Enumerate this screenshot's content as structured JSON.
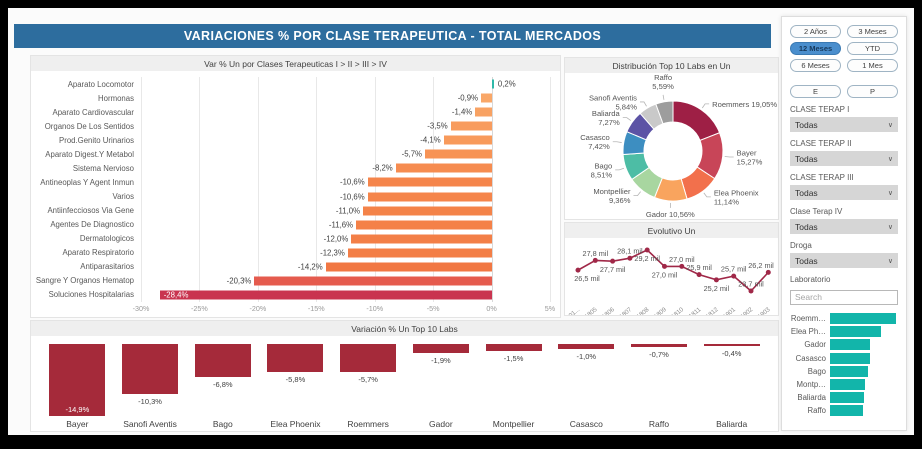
{
  "header": {
    "title": "VARIACIONES % POR CLASE TERAPEUTICA  - TOTAL MERCADOS"
  },
  "colors": {
    "header_bg": "#2d6d9e",
    "positive_teal": "#2fb9a9",
    "bottom_bar_red": "#a52a3a",
    "line_maroon": "#a02848",
    "sidebar_bar_teal": "#12b5aa",
    "selected_button_blue": "#4a8ecd"
  },
  "chart_data": [
    {
      "type": "bar",
      "orientation": "horizontal",
      "title": "Var % Un por Clases Terapeuticas I > II > III > IV",
      "categories": [
        "Aparato Locomotor",
        "Hormonas",
        "Aparato Cardiovascular",
        "Organos De Los Sentidos",
        "Prod.Genito Urinarios",
        "Aparato Digest.Y Metabol",
        "Sistema Nervioso",
        "Antineoplas Y Agent Inmun",
        "Varios",
        "Antiinfecciosos Via Gene",
        "Agentes De Diagnostico",
        "Dermatologicos",
        "Aparato Respiratorio",
        "Antiparasitarios",
        "Sangre Y Organos Hematop",
        "Soluciones Hospitalarias"
      ],
      "values": [
        0.2,
        -0.9,
        -1.4,
        -3.5,
        -4.1,
        -5.7,
        -8.2,
        -10.6,
        -10.6,
        -11.0,
        -11.6,
        -12.0,
        -12.3,
        -14.2,
        -20.3,
        -28.4
      ],
      "value_labels": [
        "0,2%",
        "-0,9%",
        "-1,4%",
        "-3,5%",
        "-4,1%",
        "-5,7%",
        "-8,2%",
        "-10,6%",
        "-10,6%",
        "-11,0%",
        "-11,6%",
        "-12,0%",
        "-12,3%",
        "-14,2%",
        "-20,3%",
        "-28,4%"
      ],
      "bar_colors": [
        "#2fb9a9",
        "#f9a768",
        "#f8a263",
        "#f89c5e",
        "#f89a5b",
        "#f79355",
        "#f68c50",
        "#f5854b",
        "#f5854b",
        "#f48349",
        "#f48148",
        "#f37f47",
        "#f37e46",
        "#f17743",
        "#e55b4e",
        "#c9344f"
      ],
      "xlim": [
        -30,
        5
      ],
      "x_ticks": [
        "-30%",
        "-25%",
        "-20%",
        "-15%",
        "-10%",
        "-5%",
        "0%",
        "5%"
      ]
    },
    {
      "type": "pie",
      "style": "donut",
      "title": "Distribución Top 10 Labs en Un",
      "labels": [
        "Roemmers",
        "Bayer",
        "Elea Phoenix",
        "Gador",
        "Montpellier",
        "Bago",
        "Casasco",
        "Baliarda",
        "Sanofi Aventis",
        "Raffo"
      ],
      "values": [
        19.05,
        15.27,
        11.14,
        10.56,
        9.36,
        8.51,
        7.42,
        7.27,
        5.84,
        5.59
      ],
      "label_lines": [
        [
          "Roemmers 19,05%"
        ],
        [
          "Bayer",
          "15,27%"
        ],
        [
          "Elea Phoenix",
          "11,14%"
        ],
        [
          "Gador 10,56%"
        ],
        [
          "Montpellier",
          "9,36%"
        ],
        [
          "Bago",
          "8,51%"
        ],
        [
          "Casasco",
          "7,42%"
        ],
        [
          "Baliarda",
          "7,27%"
        ],
        [
          "Sanofi Aventis",
          "5,84%"
        ],
        [
          "Raffo",
          "5,59%"
        ]
      ],
      "slice_colors": [
        "#9e1f45",
        "#c84558",
        "#f2704c",
        "#f9a45e",
        "#a8d6a0",
        "#4dbda5",
        "#3d8ec1",
        "#5c53a5",
        "#c9c9c9",
        "#9d9d9d"
      ]
    },
    {
      "type": "line",
      "title": "Evolutivo Un",
      "x": [
        "201...",
        "201805",
        "201806",
        "201807",
        "201808",
        "201809",
        "201810",
        "201811",
        "201812",
        "201901",
        "201902",
        "201903"
      ],
      "values": [
        26.5,
        27.8,
        27.7,
        28.1,
        29.2,
        27.0,
        27.0,
        25.9,
        25.2,
        25.7,
        23.7,
        26.2
      ],
      "value_labels": [
        "26,5 mil",
        "27,8 mil",
        "27,7 mil",
        "28,1 mil",
        "29,2 mil",
        "27,0 mil",
        "27,0 mil",
        "25,9 mil",
        "25,2 mil",
        "25,7 mil",
        "23,7 mil",
        "26,2 mil"
      ],
      "label_pos": [
        "below",
        "above",
        "below",
        "above",
        "below",
        "below",
        "above",
        "above",
        "below",
        "above",
        "above",
        "above"
      ],
      "ylim": [
        23.7,
        29.2
      ]
    },
    {
      "type": "bar",
      "orientation": "vertical",
      "title": "Variación % Un Top 10 Labs",
      "categories": [
        "Bayer",
        "Sanofi Aventis",
        "Bago",
        "Elea Phoenix",
        "Roemmers",
        "Gador",
        "Montpellier",
        "Casasco",
        "Raffo",
        "Baliarda"
      ],
      "values": [
        -14.9,
        -10.3,
        -6.8,
        -5.8,
        -5.7,
        -1.9,
        -1.5,
        -1.0,
        -0.7,
        -0.4
      ],
      "value_labels": [
        "-14,9%",
        "-10,3%",
        "-6,8%",
        "-5,8%",
        "-5,7%",
        "-1,9%",
        "-1,5%",
        "-1,0%",
        "-0,7%",
        "-0,4%"
      ],
      "bar_color": "#a52a3a"
    },
    {
      "type": "bar",
      "orientation": "horizontal",
      "title": "Laboratorio slicer bars",
      "categories": [
        "Roemm…",
        "Elea Ph…",
        "Gador",
        "Casasco",
        "Bago",
        "Montp…",
        "Baliarda",
        "Raffo"
      ],
      "relative_widths": [
        1.0,
        0.78,
        0.61,
        0.61,
        0.57,
        0.53,
        0.51,
        0.5
      ]
    }
  ],
  "sidebar": {
    "period_buttons": [
      {
        "label": "2 Años",
        "selected": false
      },
      {
        "label": "3 Meses",
        "selected": false
      },
      {
        "label": "12 Meses",
        "selected": true
      },
      {
        "label": "YTD",
        "selected": false
      },
      {
        "label": "6 Meses",
        "selected": false
      },
      {
        "label": "1 Mes",
        "selected": false
      }
    ],
    "ep_buttons": [
      {
        "label": "E"
      },
      {
        "label": "P"
      }
    ],
    "filters": [
      {
        "label": "CLASE TERAP I",
        "value": "Todas"
      },
      {
        "label": "CLASE TERAP II",
        "value": "Todas"
      },
      {
        "label": "CLASE TERAP III",
        "value": "Todas"
      },
      {
        "label": "Clase Terap IV",
        "value": "Todas"
      },
      {
        "label": "Droga",
        "value": "Todas"
      }
    ],
    "laboratorio": {
      "label": "Laboratorio",
      "placeholder": "Search"
    }
  }
}
